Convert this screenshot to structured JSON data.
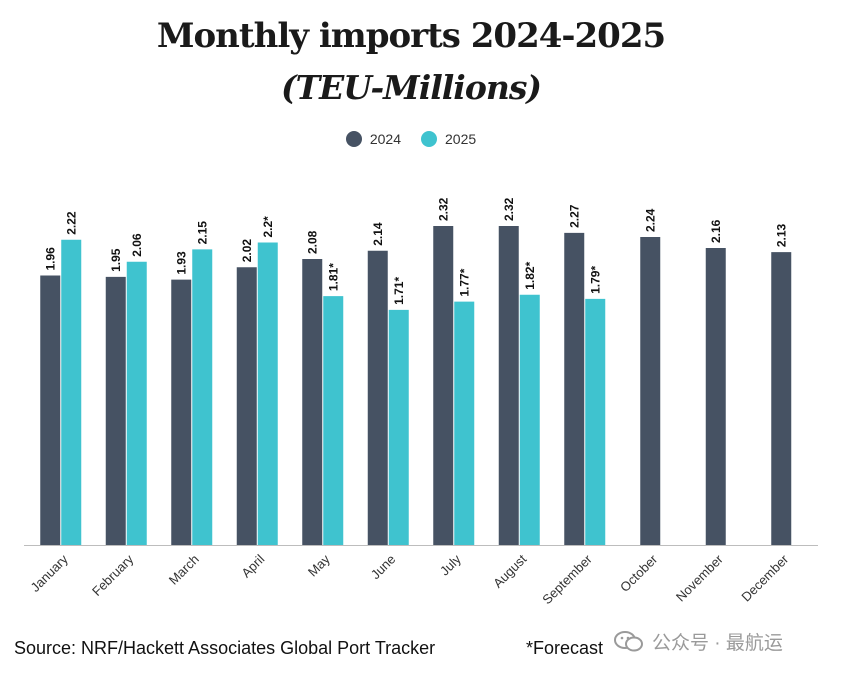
{
  "title": "Monthly imports 2024-2025",
  "subtitle": "(TEU-Millions)",
  "legend": [
    {
      "label": "2024",
      "color": "#465263"
    },
    {
      "label": "2025",
      "color": "#3fc3cf"
    }
  ],
  "source": "Source: NRF/Hackett Associates Global Port Tracker",
  "forecast_note": "*Forecast",
  "watermark": "公众号 · 最航运",
  "chart_data": {
    "type": "bar",
    "categories": [
      "January",
      "February",
      "March",
      "April",
      "May",
      "June",
      "July",
      "August",
      "September",
      "October",
      "November",
      "December"
    ],
    "series": [
      {
        "name": "2024",
        "color": "#465263",
        "values": [
          1.96,
          1.95,
          1.93,
          2.02,
          2.08,
          2.14,
          2.32,
          2.32,
          2.27,
          2.24,
          2.16,
          2.13
        ],
        "labels": [
          "1.96",
          "1.95",
          "1.93",
          "2.02",
          "2.08",
          "2.14",
          "2.32",
          "2.32",
          "2.27",
          "2.24",
          "2.16",
          "2.13"
        ]
      },
      {
        "name": "2025",
        "color": "#3fc3cf",
        "values": [
          2.22,
          2.06,
          2.15,
          2.2,
          1.81,
          1.71,
          1.77,
          1.82,
          1.79,
          null,
          null,
          null
        ],
        "labels": [
          "2.22",
          "2.06",
          "2.15",
          "2.2*",
          "1.81*",
          "1.71*",
          "1.77*",
          "1.82*",
          "1.79*",
          null,
          null,
          null
        ]
      }
    ],
    "title": "Monthly imports 2024-2025",
    "subtitle": "(TEU-Millions)",
    "ylim": [
      0,
      2.5
    ],
    "grid": false,
    "legend_position": "top-center"
  }
}
